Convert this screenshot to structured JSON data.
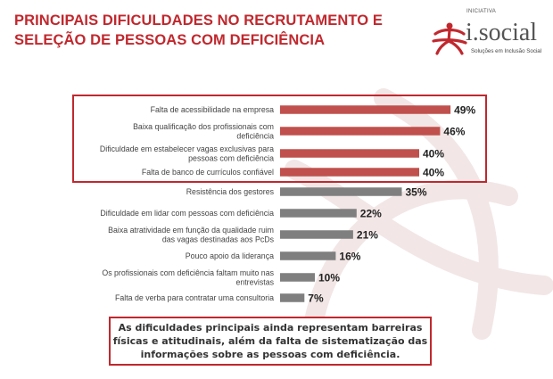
{
  "title": {
    "line1": "PRINCIPAIS DIFICULDADES NO RECRUTAMENTO E",
    "line2": "SELEÇÃO DE PESSOAS COM DEFICIÊNCIA"
  },
  "logo": {
    "initiative": "INICIATIVA",
    "name": "i.social",
    "tagline": "Soluções em Inclusão Social"
  },
  "colors": {
    "accent": "#c0282e",
    "bar_highlight": "#c0504d",
    "bar_regular": "#7f7f7f"
  },
  "chart_data": {
    "type": "bar",
    "orientation": "horizontal",
    "unit": "%",
    "xlim": [
      0,
      50
    ],
    "highlighted_count": 4,
    "categories": [
      [
        "Falta de acessibilidade na empresa"
      ],
      [
        "Baixa qualificação dos profissionais com",
        "deficiência"
      ],
      [
        "Dificuldade em estabelecer vagas exclusivas para",
        "pessoas com deficiência"
      ],
      [
        "Falta de banco de currículos confiável"
      ],
      [
        "Resistência dos gestores"
      ],
      [
        "Dificuldade em lidar com pessoas com deficiência"
      ],
      [
        "Baixa atratividade em função da qualidade ruim",
        "das vagas destinadas aos PcDs"
      ],
      [
        "Pouco apoio da liderança"
      ],
      [
        "Os profissionais com deficiência faltam muito nas",
        "entrevistas"
      ],
      [
        "Falta de verba para contratar uma consultoria"
      ]
    ],
    "values": [
      49,
      46,
      40,
      40,
      35,
      22,
      21,
      16,
      10,
      7
    ],
    "value_labels": [
      "49%",
      "46%",
      "40%",
      "40%",
      "35%",
      "22%",
      "21%",
      "16%",
      "10%",
      "7%"
    ]
  },
  "summary": {
    "line1": "As dificuldades principais ainda representam barreiras",
    "line2": "físicas e atitudinais, além da falta de sistematização das",
    "line3": "informações sobre as pessoas com deficiência."
  }
}
